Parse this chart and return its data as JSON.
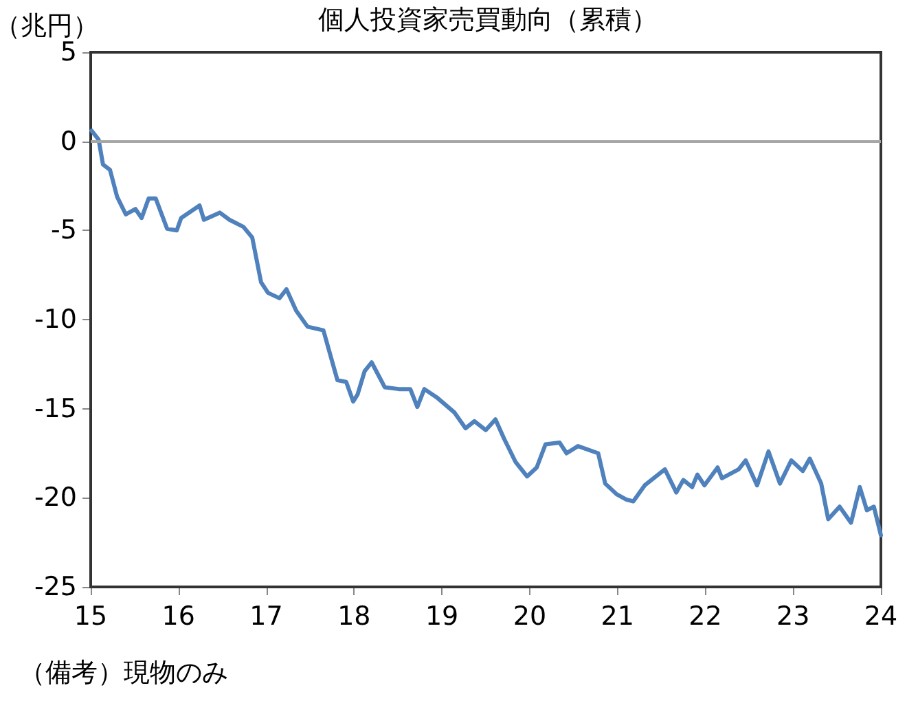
{
  "chart_data": {
    "type": "line",
    "title": "個人投資家売買動向（累積）",
    "ylabel": "（兆円）",
    "annotations": [
      "（備考）現物のみ"
    ],
    "xlim": [
      15,
      24
    ],
    "xticks": [
      15,
      16,
      17,
      18,
      19,
      20,
      21,
      22,
      23,
      24
    ],
    "ylim": [
      -25,
      5
    ],
    "yticks": [
      -25,
      -20,
      -15,
      -10,
      -5,
      0,
      5
    ],
    "grid": false,
    "marker": "none",
    "line_style": "solid",
    "ref_lines": [
      {
        "axis": "y",
        "value": 0,
        "color": "#a6a6a6"
      }
    ],
    "series": [
      {
        "color": "#4f81bd",
        "x": [
          15.01,
          15.09,
          15.14,
          15.22,
          15.3,
          15.4,
          15.51,
          15.58,
          15.66,
          15.74,
          15.87,
          15.98,
          16.03,
          16.24,
          16.29,
          16.47,
          16.58,
          16.74,
          16.84,
          16.94,
          17.02,
          17.15,
          17.23,
          17.34,
          17.47,
          17.65,
          17.81,
          17.91,
          17.99,
          18.04,
          18.12,
          18.2,
          18.35,
          18.51,
          18.64,
          18.72,
          18.8,
          18.95,
          19.14,
          19.27,
          19.37,
          19.5,
          19.61,
          19.71,
          19.84,
          19.97,
          20.08,
          20.18,
          20.34,
          20.42,
          20.55,
          20.78,
          20.86,
          20.99,
          21.1,
          21.18,
          21.31,
          21.54,
          21.67,
          21.75,
          21.85,
          21.91,
          21.99,
          22.14,
          22.19,
          22.38,
          22.46,
          22.59,
          22.72,
          22.85,
          22.98,
          23.11,
          23.19,
          23.32,
          23.4,
          23.53,
          23.66,
          23.76,
          23.84,
          23.92,
          24.0
        ],
        "values": [
          0.6,
          0.1,
          -1.3,
          -1.6,
          -3.1,
          -4.1,
          -3.8,
          -4.3,
          -3.2,
          -3.2,
          -4.9,
          -5.0,
          -4.3,
          -3.6,
          -4.4,
          -4.0,
          -4.4,
          -4.8,
          -5.4,
          -7.9,
          -8.5,
          -8.8,
          -8.3,
          -9.5,
          -10.4,
          -10.6,
          -13.4,
          -13.5,
          -14.6,
          -14.2,
          -12.9,
          -12.4,
          -13.8,
          -13.9,
          -13.9,
          -14.9,
          -13.9,
          -14.4,
          -15.2,
          -16.1,
          -15.7,
          -16.2,
          -15.6,
          -16.7,
          -18.0,
          -18.8,
          -18.3,
          -17.0,
          -16.9,
          -17.5,
          -17.1,
          -17.5,
          -19.2,
          -19.8,
          -20.1,
          -20.2,
          -19.3,
          -18.4,
          -19.7,
          -19.0,
          -19.4,
          -18.7,
          -19.3,
          -18.3,
          -18.9,
          -18.4,
          -17.9,
          -19.3,
          -17.4,
          -19.2,
          -17.9,
          -18.5,
          -17.8,
          -19.2,
          -21.2,
          -20.5,
          -21.4,
          -19.4,
          -20.7,
          -20.5,
          -22.1
        ]
      }
    ]
  }
}
